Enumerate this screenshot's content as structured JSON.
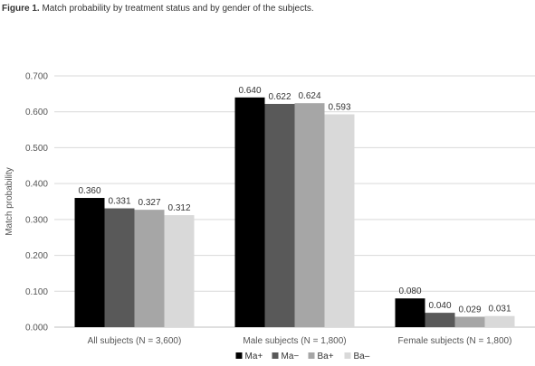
{
  "caption": {
    "figure_label": "Figure 1.",
    "text": "Match probability by treatment status and by gender of the subjects."
  },
  "chart_data": {
    "type": "bar",
    "ylabel": "Match probability",
    "xlabel": "",
    "ylim": [
      0,
      0.7
    ],
    "yticks": [
      "0.000",
      "0.100",
      "0.200",
      "0.300",
      "0.400",
      "0.500",
      "0.600",
      "0.700"
    ],
    "categories": [
      "All subjects (N = 3,600)",
      "Male subjects (N = 1,800)",
      "Female subjects (N = 1,800)"
    ],
    "series": [
      {
        "name": "Ma+",
        "color": "#000000",
        "values": [
          0.36,
          0.64,
          0.08
        ],
        "labels": [
          "0.360",
          "0.640",
          "0.080"
        ]
      },
      {
        "name": "Ma−",
        "color": "#595959",
        "values": [
          0.331,
          0.622,
          0.04
        ],
        "labels": [
          "0.331",
          "0.622",
          "0.040"
        ]
      },
      {
        "name": "Ba+",
        "color": "#a6a6a6",
        "values": [
          0.327,
          0.624,
          0.029
        ],
        "labels": [
          "0.327",
          "0.624",
          "0.029"
        ]
      },
      {
        "name": "Ba–",
        "color": "#d9d9d9",
        "values": [
          0.312,
          0.593,
          0.031
        ],
        "labels": [
          "0.312",
          "0.593",
          "0.031"
        ]
      }
    ],
    "grid": "horizontal",
    "legend_position": "bottom"
  }
}
